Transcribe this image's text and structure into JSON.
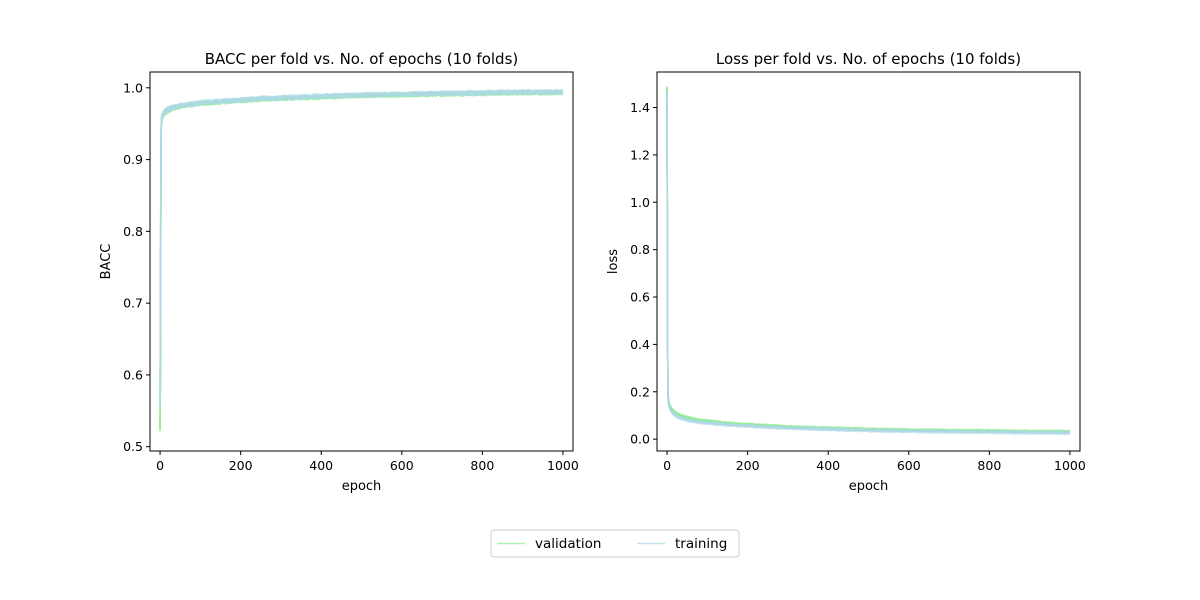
{
  "chart_data": [
    {
      "type": "line",
      "title": "BACC per fold vs. No. of epochs (10 folds)",
      "xlabel": "epoch",
      "ylabel": "BACC",
      "xlim": [
        -25,
        1025
      ],
      "ylim": [
        0.494,
        1.022
      ],
      "xticks": [
        0,
        200,
        400,
        600,
        800,
        1000
      ],
      "yticks": [
        0.5,
        0.6,
        0.7,
        0.8,
        0.9,
        1.0
      ],
      "xtick_labels": [
        "0",
        "200",
        "400",
        "600",
        "800",
        "1000"
      ],
      "ytick_labels": [
        "0.5",
        "0.6",
        "0.7",
        "0.8",
        "0.9",
        "1.0"
      ],
      "grid": false,
      "folds": 10,
      "series": [
        {
          "name": "validation",
          "color": "#90ee90",
          "x": [
            0,
            1,
            2,
            3,
            5,
            8,
            12,
            20,
            30,
            50,
            75,
            100,
            150,
            200,
            250,
            300,
            400,
            500,
            600,
            700,
            800,
            900,
            1000
          ],
          "values": [
            0.525,
            0.62,
            0.86,
            0.95,
            0.958,
            0.962,
            0.965,
            0.968,
            0.971,
            0.974,
            0.976,
            0.978,
            0.98,
            0.982,
            0.984,
            0.985,
            0.987,
            0.989,
            0.99,
            0.991,
            0.992,
            0.993,
            0.993
          ]
        },
        {
          "name": "training",
          "color": "#add8e6",
          "x": [
            0,
            1,
            2,
            3,
            5,
            8,
            12,
            20,
            30,
            50,
            75,
            100,
            150,
            200,
            250,
            300,
            400,
            500,
            600,
            700,
            800,
            900,
            1000
          ],
          "values": [
            0.56,
            0.7,
            0.9,
            0.955,
            0.96,
            0.964,
            0.967,
            0.97,
            0.972,
            0.975,
            0.977,
            0.979,
            0.981,
            0.983,
            0.985,
            0.986,
            0.988,
            0.99,
            0.991,
            0.992,
            0.993,
            0.994,
            0.994
          ]
        }
      ]
    },
    {
      "type": "line",
      "title": "Loss per fold vs. No. of epochs (10 folds)",
      "xlabel": "epoch",
      "ylabel": "loss",
      "xlim": [
        -25,
        1025
      ],
      "ylim": [
        -0.05,
        1.55
      ],
      "xticks": [
        0,
        200,
        400,
        600,
        800,
        1000
      ],
      "yticks": [
        0.0,
        0.2,
        0.4,
        0.6,
        0.8,
        1.0,
        1.2,
        1.4
      ],
      "xtick_labels": [
        "0",
        "200",
        "400",
        "600",
        "800",
        "1000"
      ],
      "ytick_labels": [
        "0.0",
        "0.2",
        "0.4",
        "0.6",
        "0.8",
        "1.0",
        "1.2",
        "1.4"
      ],
      "grid": false,
      "folds": 10,
      "series": [
        {
          "name": "validation",
          "color": "#90ee90",
          "x": [
            0,
            1,
            2,
            3,
            5,
            8,
            12,
            20,
            30,
            50,
            75,
            100,
            150,
            200,
            250,
            300,
            400,
            500,
            600,
            700,
            800,
            900,
            1000
          ],
          "values": [
            1.48,
            0.6,
            0.22,
            0.17,
            0.15,
            0.135,
            0.125,
            0.11,
            0.1,
            0.09,
            0.08,
            0.075,
            0.066,
            0.06,
            0.055,
            0.05,
            0.045,
            0.04,
            0.037,
            0.035,
            0.033,
            0.031,
            0.03
          ]
        },
        {
          "name": "training",
          "color": "#add8e6",
          "x": [
            0,
            1,
            2,
            3,
            5,
            8,
            12,
            20,
            30,
            50,
            75,
            100,
            150,
            200,
            250,
            300,
            400,
            500,
            600,
            700,
            800,
            900,
            1000
          ],
          "values": [
            1.46,
            0.55,
            0.2,
            0.16,
            0.14,
            0.125,
            0.115,
            0.1,
            0.09,
            0.08,
            0.072,
            0.067,
            0.06,
            0.055,
            0.05,
            0.046,
            0.041,
            0.036,
            0.033,
            0.031,
            0.029,
            0.027,
            0.026
          ]
        }
      ]
    }
  ],
  "legend": {
    "placement": "bottom-center",
    "entries": [
      {
        "label": "validation",
        "color": "#90ee90"
      },
      {
        "label": "training",
        "color": "#add8e6"
      }
    ]
  }
}
